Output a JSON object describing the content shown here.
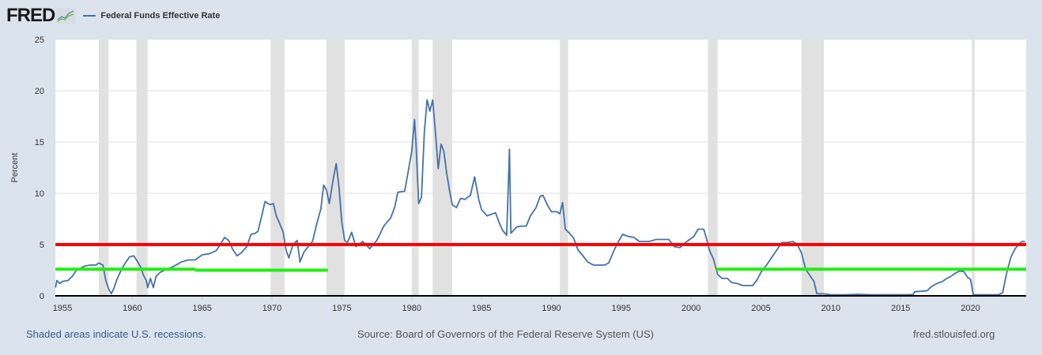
{
  "header": {
    "logo_text": "FRED",
    "logo_icon": "chart-line-icon",
    "legend_label": "Federal Funds Effective Rate"
  },
  "footer": {
    "recession_note": "Shaded areas indicate U.S. recessions.",
    "source": "Source: Board of Governors of the Federal Reserve System (US)",
    "site": "fred.stlouisfed.org"
  },
  "colors": {
    "series": "#4572a7",
    "red_line": "#ff0000",
    "green_line": "#22ee11",
    "recession": "#e1e1e1",
    "background": "#dbe3ec"
  },
  "chart_data": {
    "type": "line",
    "title": "Federal Funds Effective Rate",
    "xlabel": "",
    "ylabel": "Percent",
    "xlim": [
      1954.5,
      2024.0
    ],
    "ylim": [
      0,
      25
    ],
    "x_ticks": [
      "1955",
      "1960",
      "1965",
      "1970",
      "1975",
      "1980",
      "1985",
      "1990",
      "1995",
      "2000",
      "2005",
      "2010",
      "2015",
      "2020"
    ],
    "y_ticks": [
      "0",
      "5",
      "10",
      "15",
      "20",
      "25"
    ],
    "grid": true,
    "legend": "top-left",
    "recessions": [
      [
        1957.6,
        1958.3
      ],
      [
        1960.3,
        1961.1
      ],
      [
        1969.9,
        1970.9
      ],
      [
        1973.9,
        1975.2
      ],
      [
        1980.0,
        1980.5
      ],
      [
        1981.5,
        1982.9
      ],
      [
        1990.6,
        1991.2
      ],
      [
        2001.2,
        2001.9
      ],
      [
        2007.9,
        2009.5
      ],
      [
        2020.1,
        2020.3
      ]
    ],
    "reference_lines": [
      {
        "name": "red-line",
        "y": 5.0,
        "x": [
          1954.5,
          2024.0
        ],
        "color": "red"
      },
      {
        "name": "green-line-1a",
        "y": 2.6,
        "x": [
          1954.5,
          1964.5
        ],
        "color": "green"
      },
      {
        "name": "green-line-1b",
        "y": 2.5,
        "x": [
          1964.5,
          1974.0
        ],
        "color": "green"
      },
      {
        "name": "green-line-2",
        "y": 2.6,
        "x": [
          2001.8,
          2024.0
        ],
        "color": "green"
      }
    ],
    "series": [
      {
        "name": "Federal Funds Effective Rate",
        "points": [
          [
            1954.5,
            0.8
          ],
          [
            1954.6,
            1.5
          ],
          [
            1954.8,
            1.2
          ],
          [
            1955.0,
            1.4
          ],
          [
            1955.4,
            1.5
          ],
          [
            1955.7,
            1.9
          ],
          [
            1956.0,
            2.5
          ],
          [
            1956.3,
            2.7
          ],
          [
            1956.6,
            2.9
          ],
          [
            1957.0,
            3.0
          ],
          [
            1957.4,
            3.0
          ],
          [
            1957.6,
            3.2
          ],
          [
            1957.9,
            3.0
          ],
          [
            1958.1,
            1.5
          ],
          [
            1958.3,
            0.7
          ],
          [
            1958.5,
            0.2
          ],
          [
            1958.7,
            0.8
          ],
          [
            1958.9,
            1.6
          ],
          [
            1959.2,
            2.5
          ],
          [
            1959.5,
            3.2
          ],
          [
            1959.8,
            3.8
          ],
          [
            1960.1,
            3.9
          ],
          [
            1960.3,
            3.5
          ],
          [
            1960.6,
            2.8
          ],
          [
            1960.8,
            2.0
          ],
          [
            1961.0,
            1.5
          ],
          [
            1961.1,
            0.8
          ],
          [
            1961.3,
            1.7
          ],
          [
            1961.5,
            0.8
          ],
          [
            1961.7,
            1.9
          ],
          [
            1962.0,
            2.3
          ],
          [
            1962.5,
            2.6
          ],
          [
            1963.0,
            2.9
          ],
          [
            1963.5,
            3.3
          ],
          [
            1964.0,
            3.5
          ],
          [
            1964.5,
            3.5
          ],
          [
            1965.0,
            4.0
          ],
          [
            1965.5,
            4.1
          ],
          [
            1966.0,
            4.4
          ],
          [
            1966.3,
            5.0
          ],
          [
            1966.6,
            5.7
          ],
          [
            1966.9,
            5.4
          ],
          [
            1967.2,
            4.5
          ],
          [
            1967.5,
            3.9
          ],
          [
            1967.8,
            4.2
          ],
          [
            1968.2,
            4.8
          ],
          [
            1968.5,
            6.0
          ],
          [
            1968.8,
            6.1
          ],
          [
            1969.0,
            6.3
          ],
          [
            1969.3,
            8.0
          ],
          [
            1969.5,
            9.2
          ],
          [
            1969.7,
            9.0
          ],
          [
            1969.9,
            8.9
          ],
          [
            1970.1,
            9.0
          ],
          [
            1970.3,
            7.8
          ],
          [
            1970.5,
            7.2
          ],
          [
            1970.8,
            6.2
          ],
          [
            1971.0,
            4.5
          ],
          [
            1971.2,
            3.7
          ],
          [
            1971.5,
            5.0
          ],
          [
            1971.8,
            5.4
          ],
          [
            1972.0,
            3.3
          ],
          [
            1972.3,
            4.3
          ],
          [
            1972.6,
            4.8
          ],
          [
            1972.9,
            5.3
          ],
          [
            1973.2,
            7.0
          ],
          [
            1973.5,
            8.5
          ],
          [
            1973.7,
            10.8
          ],
          [
            1973.9,
            10.3
          ],
          [
            1974.1,
            9.0
          ],
          [
            1974.4,
            11.5
          ],
          [
            1974.6,
            12.9
          ],
          [
            1974.8,
            10.5
          ],
          [
            1975.0,
            7.1
          ],
          [
            1975.1,
            6.3
          ],
          [
            1975.2,
            5.4
          ],
          [
            1975.4,
            5.2
          ],
          [
            1975.7,
            6.2
          ],
          [
            1976.0,
            4.8
          ],
          [
            1976.5,
            5.3
          ],
          [
            1977.0,
            4.6
          ],
          [
            1977.5,
            5.4
          ],
          [
            1978.0,
            6.8
          ],
          [
            1978.5,
            7.6
          ],
          [
            1978.8,
            8.7
          ],
          [
            1979.0,
            10.1
          ],
          [
            1979.5,
            10.2
          ],
          [
            1979.8,
            12.5
          ],
          [
            1980.0,
            14.1
          ],
          [
            1980.2,
            17.2
          ],
          [
            1980.3,
            15.0
          ],
          [
            1980.5,
            9.0
          ],
          [
            1980.7,
            9.6
          ],
          [
            1980.9,
            15.9
          ],
          [
            1981.1,
            19.1
          ],
          [
            1981.3,
            18.0
          ],
          [
            1981.5,
            19.1
          ],
          [
            1981.7,
            15.9
          ],
          [
            1981.9,
            12.4
          ],
          [
            1982.1,
            14.8
          ],
          [
            1982.3,
            14.1
          ],
          [
            1982.5,
            12.0
          ],
          [
            1982.7,
            10.3
          ],
          [
            1982.9,
            8.9
          ],
          [
            1983.2,
            8.6
          ],
          [
            1983.5,
            9.5
          ],
          [
            1983.8,
            9.4
          ],
          [
            1984.2,
            9.8
          ],
          [
            1984.5,
            11.6
          ],
          [
            1984.8,
            9.4
          ],
          [
            1985.0,
            8.4
          ],
          [
            1985.4,
            7.8
          ],
          [
            1985.8,
            8.0
          ],
          [
            1986.0,
            8.1
          ],
          [
            1986.3,
            7.0
          ],
          [
            1986.5,
            6.4
          ],
          [
            1986.8,
            5.9
          ],
          [
            1987.0,
            14.3
          ],
          [
            1987.1,
            6.1
          ],
          [
            1987.5,
            6.7
          ],
          [
            1987.8,
            6.8
          ],
          [
            1988.2,
            6.8
          ],
          [
            1988.5,
            7.8
          ],
          [
            1988.9,
            8.6
          ],
          [
            1989.2,
            9.7
          ],
          [
            1989.4,
            9.8
          ],
          [
            1989.7,
            8.9
          ],
          [
            1990.0,
            8.2
          ],
          [
            1990.4,
            8.2
          ],
          [
            1990.6,
            8.0
          ],
          [
            1990.8,
            9.1
          ],
          [
            1991.0,
            6.5
          ],
          [
            1991.3,
            6.1
          ],
          [
            1991.6,
            5.6
          ],
          [
            1991.9,
            4.5
          ],
          [
            1992.2,
            4.0
          ],
          [
            1992.6,
            3.3
          ],
          [
            1993.0,
            3.0
          ],
          [
            1993.4,
            3.0
          ],
          [
            1993.8,
            3.0
          ],
          [
            1994.1,
            3.2
          ],
          [
            1994.5,
            4.5
          ],
          [
            1994.8,
            5.3
          ],
          [
            1995.1,
            6.0
          ],
          [
            1995.5,
            5.8
          ],
          [
            1995.9,
            5.7
          ],
          [
            1996.3,
            5.3
          ],
          [
            1996.7,
            5.3
          ],
          [
            1997.0,
            5.3
          ],
          [
            1997.5,
            5.5
          ],
          [
            1998.0,
            5.5
          ],
          [
            1998.4,
            5.5
          ],
          [
            1998.8,
            4.8
          ],
          [
            1999.2,
            4.7
          ],
          [
            1999.6,
            5.2
          ],
          [
            1999.9,
            5.5
          ],
          [
            2000.2,
            5.8
          ],
          [
            2000.5,
            6.5
          ],
          [
            2000.9,
            6.5
          ],
          [
            2001.1,
            5.6
          ],
          [
            2001.3,
            4.5
          ],
          [
            2001.6,
            3.6
          ],
          [
            2001.9,
            2.1
          ],
          [
            2002.2,
            1.7
          ],
          [
            2002.6,
            1.7
          ],
          [
            2002.9,
            1.3
          ],
          [
            2003.3,
            1.2
          ],
          [
            2003.7,
            1.0
          ],
          [
            2004.0,
            1.0
          ],
          [
            2004.4,
            1.0
          ],
          [
            2004.7,
            1.5
          ],
          [
            2005.0,
            2.3
          ],
          [
            2005.4,
            3.0
          ],
          [
            2005.8,
            3.8
          ],
          [
            2006.2,
            4.6
          ],
          [
            2006.5,
            5.2
          ],
          [
            2006.9,
            5.2
          ],
          [
            2007.3,
            5.3
          ],
          [
            2007.6,
            5.0
          ],
          [
            2007.9,
            4.2
          ],
          [
            2008.2,
            2.6
          ],
          [
            2008.5,
            2.0
          ],
          [
            2008.8,
            1.4
          ],
          [
            2009.0,
            0.2
          ],
          [
            2009.5,
            0.2
          ],
          [
            2010.0,
            0.1
          ],
          [
            2011.0,
            0.1
          ],
          [
            2012.0,
            0.15
          ],
          [
            2013.0,
            0.1
          ],
          [
            2014.0,
            0.1
          ],
          [
            2015.0,
            0.1
          ],
          [
            2015.9,
            0.12
          ],
          [
            2016.0,
            0.4
          ],
          [
            2016.9,
            0.5
          ],
          [
            2017.2,
            0.9
          ],
          [
            2017.6,
            1.2
          ],
          [
            2018.0,
            1.4
          ],
          [
            2018.3,
            1.7
          ],
          [
            2018.6,
            1.9
          ],
          [
            2018.9,
            2.2
          ],
          [
            2019.2,
            2.4
          ],
          [
            2019.5,
            2.4
          ],
          [
            2019.8,
            1.8
          ],
          [
            2020.0,
            1.6
          ],
          [
            2020.2,
            0.1
          ],
          [
            2021.0,
            0.1
          ],
          [
            2022.0,
            0.1
          ],
          [
            2022.3,
            0.3
          ],
          [
            2022.6,
            2.3
          ],
          [
            2022.9,
            3.8
          ],
          [
            2023.2,
            4.6
          ],
          [
            2023.5,
            5.1
          ],
          [
            2023.7,
            5.3
          ],
          [
            2023.9,
            5.3
          ]
        ]
      }
    ]
  }
}
